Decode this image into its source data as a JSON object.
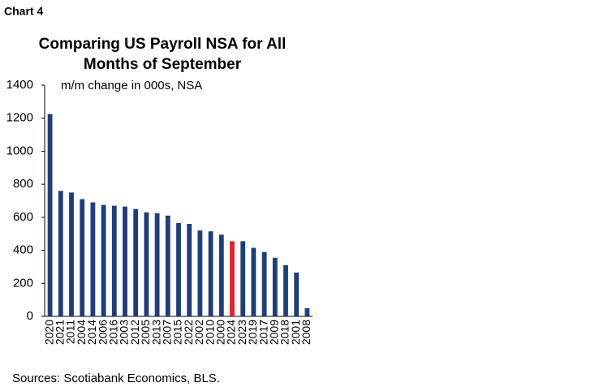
{
  "chart_data": {
    "type": "bar",
    "label": "Chart 4",
    "title": [
      "Comparing US Payroll NSA for All",
      "Months of September"
    ],
    "y_label": "m/m change in 000s, NSA",
    "source": "Sources: Scotiabank Economics, BLS.",
    "categories": [
      "2020",
      "2021",
      "2011",
      "2004",
      "2014",
      "2006",
      "2016",
      "2003",
      "2012",
      "2005",
      "2013",
      "2007",
      "2015",
      "2022",
      "2002",
      "2010",
      "2000",
      "2024",
      "2023",
      "2019",
      "2017",
      "2009",
      "2018",
      "2001",
      "2008"
    ],
    "values": [
      1225,
      760,
      750,
      710,
      690,
      675,
      670,
      665,
      650,
      630,
      625,
      610,
      565,
      560,
      520,
      515,
      495,
      455,
      455,
      415,
      390,
      355,
      310,
      265,
      50
    ],
    "colors": [
      "#1f3d7a",
      "#1f3d7a",
      "#1f3d7a",
      "#1f3d7a",
      "#1f3d7a",
      "#1f3d7a",
      "#1f3d7a",
      "#1f3d7a",
      "#1f3d7a",
      "#1f3d7a",
      "#1f3d7a",
      "#1f3d7a",
      "#1f3d7a",
      "#1f3d7a",
      "#1f3d7a",
      "#1f3d7a",
      "#1f3d7a",
      "#e8202a",
      "#1f3d7a",
      "#1f3d7a",
      "#1f3d7a",
      "#1f3d7a",
      "#1f3d7a",
      "#1f3d7a",
      "#1f3d7a"
    ],
    "ylim": [
      0,
      1400
    ],
    "yticks": [
      0,
      200,
      400,
      600,
      800,
      1000,
      1200,
      1400
    ]
  }
}
